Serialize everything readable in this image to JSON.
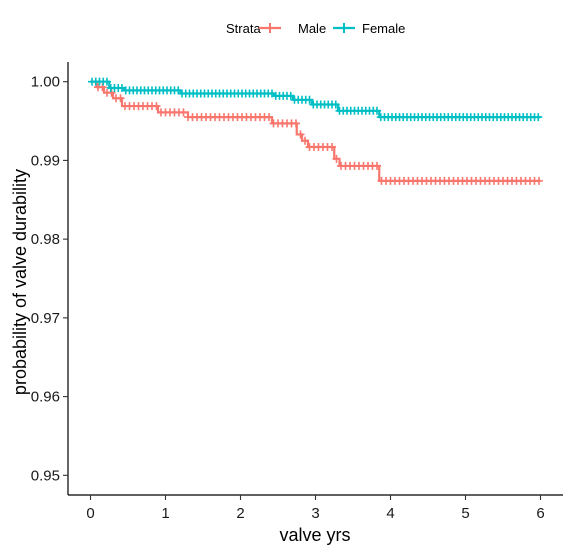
{
  "chart_data": {
    "type": "line",
    "subtype": "kaplan-meier step curve with censor marks",
    "xlabel": "valve yrs",
    "ylabel": "probability of valve durability",
    "xlim": [
      -0.3,
      6.3
    ],
    "ylim": [
      0.9475,
      1.0025
    ],
    "x_ticks": [
      0,
      1,
      2,
      3,
      4,
      5,
      6
    ],
    "y_ticks": [
      0.95,
      0.96,
      0.97,
      0.98,
      0.99,
      1.0
    ],
    "y_tick_labels": [
      "0.95",
      "0.96",
      "0.97",
      "0.98",
      "0.99",
      "1.00"
    ],
    "grid": false,
    "legend": {
      "title": "Strata",
      "position": "top",
      "entries": [
        "Male",
        "Female"
      ]
    },
    "series": [
      {
        "name": "Male",
        "color": "#F8766D",
        "steps": [
          [
            0,
            1.0
          ],
          [
            0.08,
            0.9993
          ],
          [
            0.18,
            0.9986
          ],
          [
            0.3,
            0.9979
          ],
          [
            0.42,
            0.9969
          ],
          [
            0.9,
            0.9961
          ],
          [
            1.3,
            0.9955
          ],
          [
            2.42,
            0.9947
          ],
          [
            2.75,
            0.9933
          ],
          [
            2.82,
            0.9925
          ],
          [
            2.9,
            0.9917
          ],
          [
            3.25,
            0.9902
          ],
          [
            3.32,
            0.9893
          ],
          [
            3.85,
            0.9874
          ],
          [
            6.0,
            0.9874
          ]
        ],
        "censor_x_from": 0.1,
        "censor_x_to": 6.0,
        "censor_step": 0.06
      },
      {
        "name": "Female",
        "color": "#00BFC4",
        "steps": [
          [
            0,
            1.0
          ],
          [
            0.25,
            0.9992
          ],
          [
            0.45,
            0.9989
          ],
          [
            1.2,
            0.9985
          ],
          [
            2.45,
            0.9982
          ],
          [
            2.7,
            0.9977
          ],
          [
            2.95,
            0.9971
          ],
          [
            3.3,
            0.9963
          ],
          [
            3.85,
            0.9955
          ],
          [
            6.0,
            0.9955
          ]
        ],
        "censor_x_from": 0.02,
        "censor_x_to": 6.0,
        "censor_step": 0.05
      }
    ]
  }
}
